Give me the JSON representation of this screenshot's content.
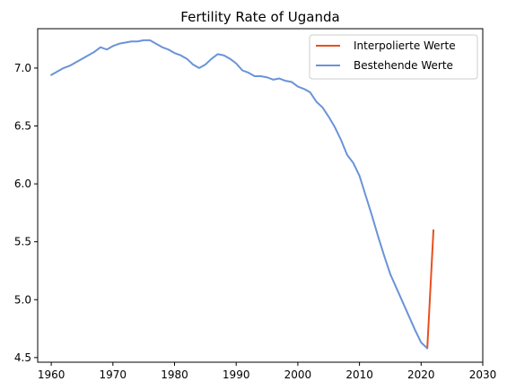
{
  "chart_data": {
    "type": "line",
    "title": "Fertility Rate of Uganda",
    "xlabel": "",
    "ylabel": "",
    "xlim": [
      1957.8,
      2030
    ],
    "ylim": [
      4.46,
      7.34
    ],
    "xticks": [
      1960,
      1970,
      1980,
      1990,
      2000,
      2010,
      2020,
      2030
    ],
    "yticks": [
      4.5,
      5.0,
      5.5,
      6.0,
      6.5,
      7.0
    ],
    "ytick_labels": [
      "4.5",
      "5.0",
      "5.5",
      "6.0",
      "6.5",
      "7.0"
    ],
    "grid": false,
    "legend_position": "top-right",
    "series": [
      {
        "name": "Interpolierte Werte",
        "color": "#e8501e",
        "x": [
          2021,
          2022
        ],
        "y": [
          4.58,
          5.6
        ]
      },
      {
        "name": "Bestehende Werte",
        "color": "#6a93d8",
        "x": [
          1960,
          1961,
          1962,
          1963,
          1964,
          1965,
          1966,
          1967,
          1968,
          1969,
          1970,
          1971,
          1972,
          1973,
          1974,
          1975,
          1976,
          1977,
          1978,
          1979,
          1980,
          1981,
          1982,
          1983,
          1984,
          1985,
          1986,
          1987,
          1988,
          1989,
          1990,
          1991,
          1992,
          1993,
          1994,
          1995,
          1996,
          1997,
          1998,
          1999,
          2000,
          2001,
          2002,
          2003,
          2004,
          2005,
          2006,
          2007,
          2008,
          2009,
          2010,
          2011,
          2012,
          2013,
          2014,
          2015,
          2016,
          2017,
          2018,
          2019,
          2020,
          2021
        ],
        "y": [
          6.94,
          6.97,
          7.0,
          7.02,
          7.05,
          7.08,
          7.11,
          7.14,
          7.18,
          7.16,
          7.19,
          7.21,
          7.22,
          7.23,
          7.23,
          7.24,
          7.24,
          7.21,
          7.18,
          7.16,
          7.13,
          7.11,
          7.08,
          7.03,
          7.0,
          7.03,
          7.08,
          7.12,
          7.11,
          7.08,
          7.04,
          6.98,
          6.96,
          6.93,
          6.93,
          6.92,
          6.9,
          6.91,
          6.89,
          6.88,
          6.84,
          6.82,
          6.79,
          6.71,
          6.66,
          6.58,
          6.49,
          6.38,
          6.25,
          6.18,
          6.07,
          5.9,
          5.73,
          5.55,
          5.38,
          5.22,
          5.1,
          4.98,
          4.86,
          4.74,
          4.63,
          4.58
        ]
      }
    ]
  }
}
